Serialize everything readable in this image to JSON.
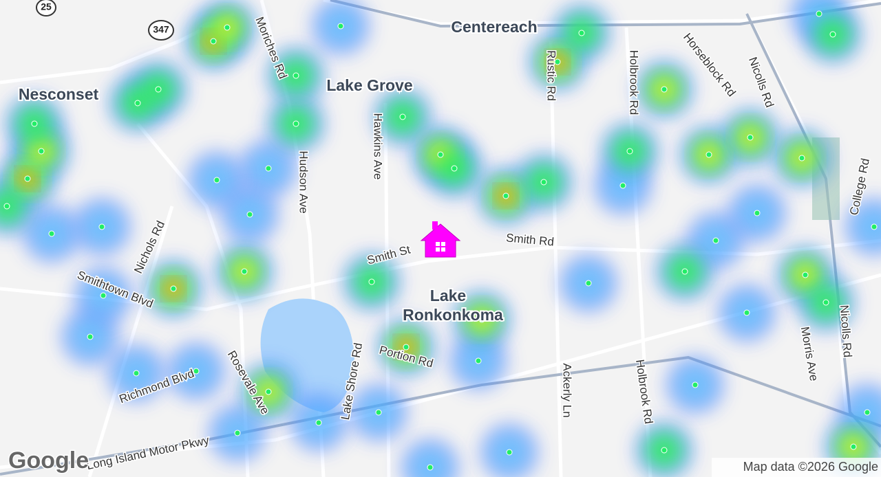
{
  "map": {
    "places": [
      "Centereach",
      "Lake Grove",
      "Nesconset",
      "Lake",
      "Ronkonkoma"
    ],
    "roads": [
      "Moriches Rd",
      "Hudson Ave",
      "Hawkins Ave",
      "Rustic Rd",
      "Holbrook Rd",
      "Horseblock Rd",
      "Nicolls Rd",
      "College Rd",
      "Smith Rd",
      "Smith St",
      "Nichols Rd",
      "Smithtown Blvd",
      "Richmond Blvd",
      "Rosevale Ave",
      "Lake Shore Rd",
      "Portion Rd",
      "Ackerly Ln",
      "Holbrook Rd",
      "Morris Ave",
      "Nicolls Rd",
      "Long Island Motor Pkwy"
    ],
    "shields": [
      "25",
      "347"
    ]
  },
  "footer": {
    "logo": "Google",
    "attribution": "Map data ©2026 Google"
  }
}
